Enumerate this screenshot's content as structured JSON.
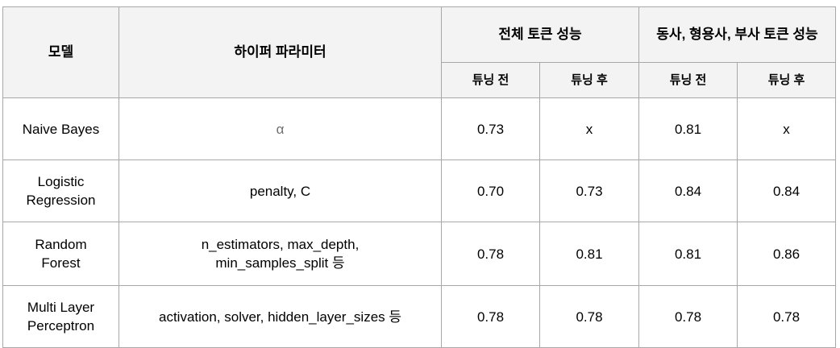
{
  "header": {
    "model": "모델",
    "hyperparams": "하이퍼 파라미터",
    "group_all": "전체 토큰 성능",
    "group_pos": "동사, 형용사, 부사 토큰 성능",
    "before": "튜닝 전",
    "after": "튜닝 후"
  },
  "rows": [
    {
      "model": "Naive Bayes",
      "hyperparams": "α",
      "all_before": "0.73",
      "all_after": "x",
      "pos_before": "0.81",
      "pos_after": "x"
    },
    {
      "model": "Logistic Regression",
      "hyperparams": "penalty, C",
      "all_before": "0.70",
      "all_after": "0.73",
      "pos_before": "0.84",
      "pos_after": "0.84"
    },
    {
      "model": "Random Forest",
      "hyperparams": "n_estimators, max_depth, min_samples_split 등",
      "all_before": "0.78",
      "all_after": "0.81",
      "pos_before": "0.81",
      "pos_after": "0.86"
    },
    {
      "model": "Multi Layer Perceptron",
      "hyperparams": "activation, solver, hidden_layer_sizes 등",
      "all_before": "0.78",
      "all_after": "0.78",
      "pos_before": "0.78",
      "pos_after": "0.78"
    }
  ]
}
